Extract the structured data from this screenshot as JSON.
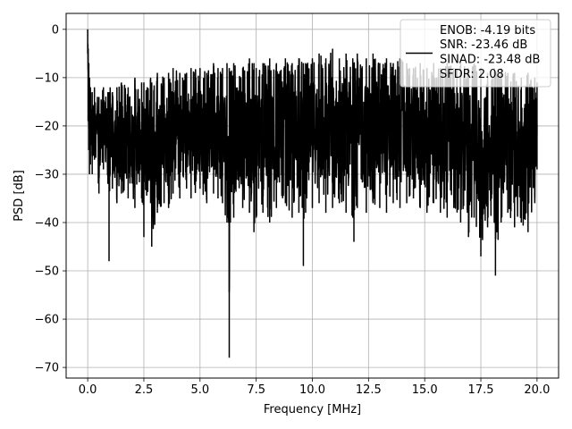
{
  "chart_data": {
    "type": "line",
    "xlabel": "Frequency [MHz]",
    "ylabel": "PSD [dB]",
    "xlim": [
      -0.96,
      20.96
    ],
    "ylim": [
      -72.2,
      3.3
    ],
    "xticks": [
      0.0,
      2.5,
      5.0,
      7.5,
      10.0,
      12.5,
      15.0,
      17.5,
      20.0
    ],
    "xtick_labels": [
      "0.0",
      "2.5",
      "5.0",
      "7.5",
      "10.0",
      "12.5",
      "15.0",
      "17.5",
      "20.0"
    ],
    "yticks": [
      0,
      -10,
      -20,
      -30,
      -40,
      -50,
      -60,
      -70
    ],
    "ytick_labels": [
      "0",
      "−10",
      "−20",
      "−30",
      "−40",
      "−50",
      "−60",
      "−70"
    ],
    "grid": true,
    "series_color": "#000000",
    "series": [
      {
        "style": "noisy spectrum, approximate envelope",
        "x": [
          0.0,
          0.02,
          0.05,
          0.08,
          0.12,
          0.2,
          0.3,
          0.5,
          0.7,
          0.9,
          0.95,
          1.0,
          1.1,
          1.3,
          1.5,
          1.8,
          2.1,
          2.4,
          2.5,
          2.8,
          2.85,
          3.1,
          3.4,
          3.6,
          3.8,
          4.1,
          4.4,
          4.6,
          5.0,
          5.3,
          5.6,
          5.8,
          6.0,
          6.2,
          6.3,
          6.35,
          6.5,
          6.9,
          7.2,
          7.4,
          7.5,
          7.8,
          8.1,
          8.4,
          8.8,
          9.1,
          9.4,
          9.6,
          9.7,
          10.0,
          10.3,
          10.6,
          10.9,
          11.2,
          11.5,
          11.8,
          11.85,
          12.0,
          12.4,
          12.7,
          13.0,
          13.3,
          13.6,
          13.9,
          14.2,
          14.5,
          14.8,
          15.1,
          15.4,
          15.7,
          16.0,
          16.3,
          16.6,
          16.9,
          16.95,
          17.2,
          17.5,
          17.8,
          18.1,
          18.15,
          18.4,
          18.7,
          19.0,
          19.3,
          19.6,
          19.9,
          20.0
        ],
        "upper": [
          0,
          -4,
          -7,
          -10,
          -12,
          -13,
          -12,
          -14,
          -12,
          -13,
          -13,
          -12,
          -13,
          -12,
          -11,
          -12,
          -10,
          -11,
          -11,
          -10,
          -11,
          -9,
          -10,
          -9,
          -8,
          -9,
          -9,
          -8,
          -8,
          -9,
          -7,
          -8,
          -8,
          -7,
          -8,
          -9,
          -7,
          -8,
          -6,
          -7,
          -8,
          -7,
          -6,
          -7,
          -6,
          -7,
          -6,
          -7,
          -7,
          -6,
          -5,
          -6,
          -4,
          -6,
          -5,
          -6,
          -7,
          -5,
          -6,
          -5,
          -7,
          -6,
          -7,
          -6,
          -7,
          -8,
          -7,
          -8,
          -7,
          -8,
          -7,
          -8,
          -7,
          -8,
          -8,
          -7,
          -8,
          -9,
          -8,
          -9,
          -8,
          -9,
          -9,
          -10,
          -9,
          -10,
          -11
        ],
        "lower": [
          -5,
          -19,
          -25,
          -30,
          -28,
          -30,
          -27,
          -34,
          -29,
          -32,
          -48,
          -30,
          -33,
          -36,
          -34,
          -35,
          -37,
          -35,
          -43,
          -36,
          -45,
          -38,
          -36,
          -37,
          -34,
          -35,
          -33,
          -35,
          -33,
          -36,
          -34,
          -35,
          -36,
          -40,
          -68,
          -40,
          -39,
          -37,
          -38,
          -42,
          -39,
          -38,
          -40,
          -37,
          -36,
          -39,
          -38,
          -49,
          -38,
          -37,
          -36,
          -38,
          -37,
          -36,
          -38,
          -39,
          -44,
          -37,
          -38,
          -36,
          -37,
          -38,
          -36,
          -37,
          -36,
          -35,
          -37,
          -38,
          -36,
          -38,
          -39,
          -37,
          -40,
          -38,
          -43,
          -39,
          -47,
          -41,
          -40,
          -51,
          -40,
          -38,
          -41,
          -40,
          -42,
          -36,
          -29
        ]
      }
    ],
    "legend": {
      "position": "top-right",
      "lines": [
        "ENOB: -4.19 bits",
        "SNR: -23.46 dB",
        "SINAD: -23.48 dB",
        "SFDR: 2.08"
      ]
    }
  }
}
